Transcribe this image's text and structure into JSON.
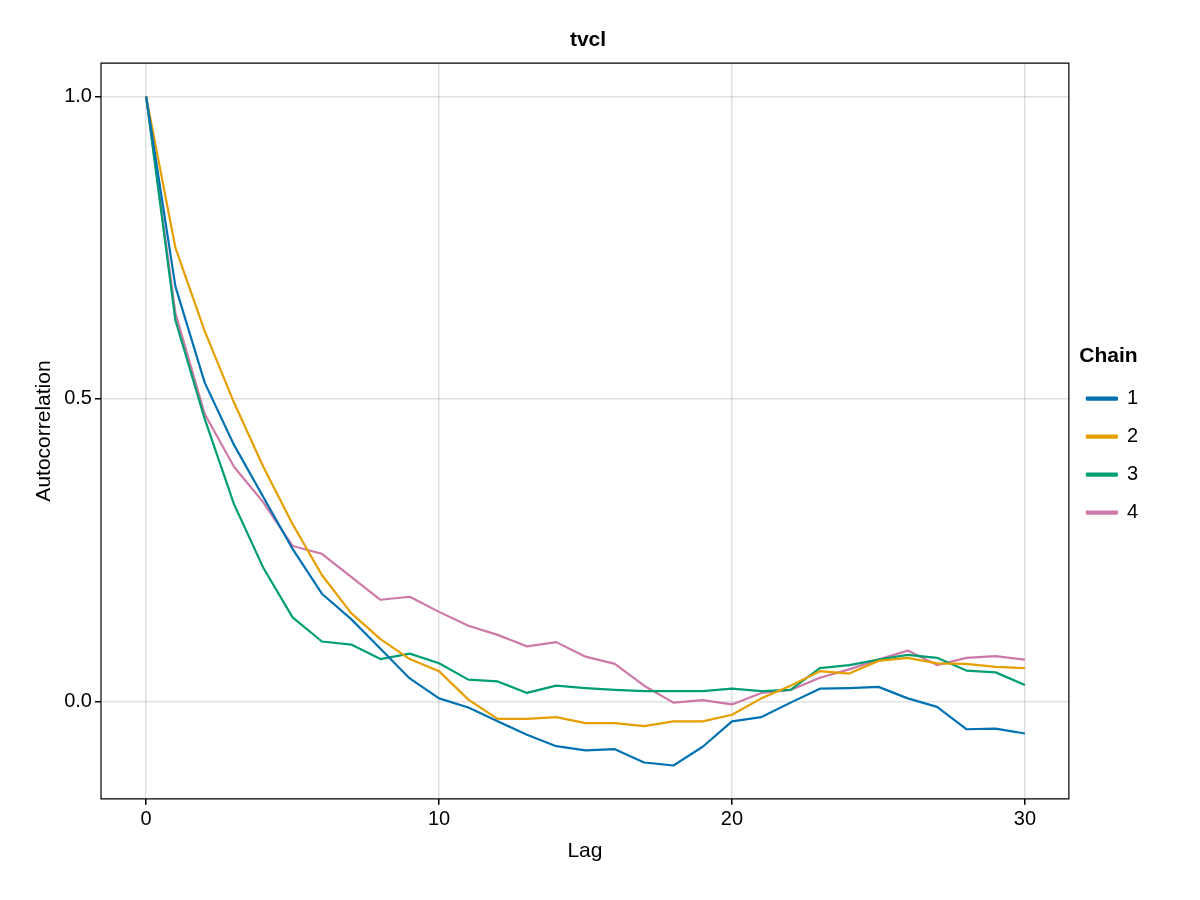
{
  "chart_data": {
    "type": "line",
    "title": "tvcl",
    "xlabel": "Lag",
    "ylabel": "Autocorrelation",
    "legend_title": "Chain",
    "x": [
      0,
      1,
      2,
      3,
      4,
      5,
      6,
      7,
      8,
      9,
      10,
      11,
      12,
      13,
      14,
      15,
      16,
      17,
      18,
      19,
      20,
      21,
      22,
      23,
      24,
      25,
      26,
      27,
      28,
      29,
      30
    ],
    "series": [
      {
        "name": "1",
        "color": "#0072b2",
        "values": [
          1.0,
          0.686,
          0.527,
          0.424,
          0.338,
          0.252,
          0.178,
          0.136,
          0.087,
          0.038,
          0.005,
          -0.01,
          -0.033,
          -0.055,
          -0.074,
          -0.081,
          -0.079,
          -0.101,
          -0.106,
          -0.075,
          -0.033,
          -0.026,
          -0.002,
          0.021,
          0.022,
          0.024,
          0.005,
          -0.009,
          -0.046,
          -0.045,
          -0.053
        ]
      },
      {
        "name": "2",
        "color": "#e69f00",
        "values": [
          1.0,
          0.75,
          0.612,
          0.494,
          0.388,
          0.293,
          0.209,
          0.146,
          0.103,
          0.07,
          0.05,
          0.003,
          -0.029,
          -0.029,
          -0.026,
          -0.036,
          -0.036,
          -0.041,
          -0.033,
          -0.033,
          -0.022,
          0.005,
          0.026,
          0.05,
          0.046,
          0.067,
          0.072,
          0.063,
          0.062,
          0.057,
          0.055
        ]
      },
      {
        "name": "3",
        "color": "#009e73",
        "values": [
          1.0,
          0.63,
          0.467,
          0.326,
          0.221,
          0.139,
          0.099,
          0.094,
          0.07,
          0.079,
          0.063,
          0.036,
          0.033,
          0.014,
          0.026,
          0.022,
          0.019,
          0.017,
          0.017,
          0.017,
          0.021,
          0.017,
          0.019,
          0.055,
          0.06,
          0.069,
          0.077,
          0.072,
          0.051,
          0.048,
          0.027
        ]
      },
      {
        "name": "4",
        "color": "#cc79a7",
        "values": [
          1.0,
          0.642,
          0.475,
          0.388,
          0.329,
          0.257,
          0.244,
          0.206,
          0.168,
          0.173,
          0.148,
          0.125,
          0.11,
          0.091,
          0.098,
          0.074,
          0.062,
          0.026,
          -0.002,
          0.002,
          -0.005,
          0.014,
          0.019,
          0.039,
          0.053,
          0.069,
          0.084,
          0.06,
          0.072,
          0.075,
          0.069
        ]
      }
    ],
    "xlim": [
      -1.54,
      31.5
    ],
    "ylim": [
      -0.161,
      1.055
    ],
    "xticks": [
      0,
      10,
      20,
      30
    ],
    "yticks": [
      {
        "value": 0,
        "label": "0.0"
      },
      0.5,
      {
        "value": 1,
        "label": "1.0"
      }
    ],
    "grid": true,
    "legend": "right",
    "marker": "none",
    "line_style": "solid"
  }
}
